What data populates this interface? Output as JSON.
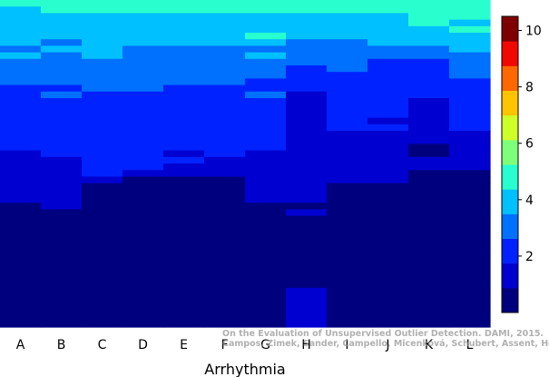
{
  "chart_data": {
    "type": "heatmap",
    "title": "",
    "xlabel": "Arrhythmia",
    "ylabel": "",
    "categories": [
      "A",
      "B",
      "C",
      "D",
      "E",
      "F",
      "G",
      "H",
      "I",
      "J",
      "K",
      "L"
    ],
    "num_rows": 50,
    "colorbar": {
      "min": 0,
      "max": 10.5,
      "ticks": [
        2,
        4,
        6,
        8,
        10
      ],
      "colors": [
        "#00007f",
        "#0000d0",
        "#0022ff",
        "#0070ff",
        "#00c0ff",
        "#29ffce",
        "#7dff7a",
        "#ceff29",
        "#ffc400",
        "#ff6800",
        "#f10800",
        "#7f0000"
      ]
    },
    "columns": [
      {
        "name": "A",
        "top": [
          4.6,
          4.2,
          4.1,
          4.0,
          3.9,
          3.7,
          3.6,
          3.3,
          3.5,
          3.0,
          3.1,
          3.0,
          2.8,
          2.6,
          2.5,
          2.3,
          2.3,
          2.2,
          2.2,
          2.0,
          2.1,
          2.0,
          1.8,
          1.6,
          1.5,
          1.5,
          1.4,
          1.3,
          1.2,
          1.1,
          1.0
        ],
        "bottom": 0.5
      },
      {
        "name": "B",
        "top": [
          4.7,
          4.6,
          4.3,
          4.2,
          4.0,
          3.9,
          3.3,
          3.8,
          3.4,
          3.2,
          2.9,
          3.0,
          2.7,
          2.6,
          2.8,
          2.6,
          2.2,
          2.4,
          2.3,
          2.2,
          2.1,
          2.0,
          2.2,
          2.0,
          1.6,
          1.6,
          1.4,
          1.4,
          1.3,
          1.2,
          1.3,
          1.1
        ],
        "bottom": 0.5
      },
      {
        "name": "C",
        "top": [
          4.7,
          4.5,
          4.3,
          4.2,
          4.0,
          3.9,
          3.6,
          3.9,
          3.7,
          3.2,
          3.0,
          2.9,
          2.8,
          2.8,
          2.6,
          2.5,
          2.4,
          2.3,
          2.3,
          2.2,
          2.1,
          2.1,
          2.0,
          2.0,
          2.0,
          1.9,
          1.8,
          1.7
        ],
        "bottom": 0.5
      },
      {
        "name": "D",
        "top": [
          4.6,
          4.4,
          4.3,
          4.2,
          4.0,
          3.9,
          3.6,
          3.3,
          3.2,
          3.1,
          3.0,
          2.9,
          2.8,
          2.7,
          2.6,
          2.5,
          2.4,
          2.3,
          2.3,
          2.2,
          2.1,
          2.0,
          1.9,
          1.8,
          1.8,
          1.8,
          1.7
        ],
        "bottom": 0.5
      },
      {
        "name": "E",
        "top": [
          4.6,
          4.4,
          4.3,
          4.2,
          4.0,
          3.9,
          3.5,
          3.3,
          3.0,
          3.1,
          2.9,
          2.8,
          2.7,
          2.6,
          2.5,
          2.4,
          2.3,
          2.3,
          2.2,
          2.2,
          2.1,
          2.0,
          1.9,
          1.7,
          1.8,
          1.6,
          1.6
        ],
        "bottom": 0.5
      },
      {
        "name": "F",
        "top": [
          4.6,
          4.4,
          4.3,
          4.2,
          4.0,
          3.9,
          3.5,
          3.1,
          3.0,
          2.9,
          2.9,
          2.8,
          2.7,
          2.6,
          2.5,
          2.4,
          2.3,
          2.3,
          2.2,
          2.2,
          2.1,
          2.0,
          1.8,
          1.9,
          1.7,
          1.6,
          1.6
        ],
        "bottom": 0.5
      },
      {
        "name": "G",
        "top": [
          4.8,
          4.6,
          4.3,
          4.2,
          4.0,
          4.7,
          4.3,
          3.3,
          3.5,
          3.2,
          2.8,
          3.0,
          2.6,
          2.4,
          2.8,
          2.6,
          2.3,
          2.4,
          2.2,
          2.1,
          2.0,
          2.1,
          1.8,
          1.6,
          1.5,
          1.5,
          1.4,
          1.3,
          1.2,
          1.1,
          1.0
        ],
        "bottom": 0.5
      },
      {
        "name": "H",
        "top": [
          4.8,
          4.5,
          4.3,
          4.2,
          3.8,
          3.6,
          3.4,
          3.0,
          2.8,
          2.9,
          2.6,
          2.5,
          2.3,
          2.4,
          1.3,
          1.5,
          1.1,
          1.4,
          1.3,
          1.2,
          1.0,
          1.3,
          1.2,
          0.9,
          1.1,
          0.9,
          1.0,
          1.2,
          1.0,
          0.9,
          0.9,
          0.8,
          0.9,
          0.8,
          0.8,
          0.8,
          0.7,
          0.7,
          0.8,
          0.7,
          0.6,
          0.6,
          0.8,
          0.6,
          1.2,
          1.0,
          1.1,
          1.1,
          1.0,
          0.9
        ],
        "bottom": 0.5
      },
      {
        "name": "I",
        "top": [
          4.7,
          4.5,
          4.3,
          4.1,
          3.9,
          3.7,
          3.4,
          3.0,
          3.2,
          2.7,
          3.0,
          2.6,
          2.4,
          2.3,
          2.2,
          2.3,
          2.1,
          2.0,
          1.9,
          1.8,
          1.7,
          1.5,
          1.4,
          1.3,
          1.2,
          1.1,
          1.0,
          0.9,
          0.8,
          0.7,
          0.7,
          0.8,
          0.7,
          0.6
        ],
        "bottom": 0.5
      },
      {
        "name": "J",
        "top": [
          4.6,
          4.5,
          4.3,
          4.1,
          4.0,
          3.7,
          3.6,
          2.9,
          3.0,
          2.6,
          2.4,
          2.5,
          2.3,
          2.0,
          2.2,
          1.8,
          2.0,
          1.9,
          1.7,
          1.8,
          1.6,
          1.5,
          1.4,
          1.3,
          1.2,
          1.1,
          1.0,
          0.9,
          0.8,
          0.7,
          0.6,
          0.6,
          0.5,
          0.5,
          0.5
        ],
        "bottom": 0.5
      },
      {
        "name": "K",
        "top": [
          4.5,
          4.8,
          4.4,
          4.7,
          3.9,
          3.7,
          3.5,
          3.0,
          2.8,
          2.6,
          2.5,
          2.4,
          2.2,
          2.0,
          1.9,
          1.7,
          1.5,
          1.3,
          1.2,
          1.1,
          1.0,
          0.9,
          0.8,
          0.7,
          1.0,
          0.9,
          0.8,
          0.7,
          0.6,
          0.6,
          0.6,
          0.6,
          0.6,
          0.6,
          0.5,
          0.5,
          0.5,
          0.5,
          0.5,
          0.5,
          0.5,
          0.5,
          0.5,
          0.5,
          0.5,
          0.5,
          0.5,
          0.5,
          0.5
        ],
        "bottom": 0.5
      },
      {
        "name": "L",
        "top": [
          4.9,
          4.7,
          4.4,
          4.2,
          4.6,
          4.1,
          3.8,
          3.5,
          3.3,
          3.1,
          3.0,
          2.8,
          2.6,
          2.5,
          2.4,
          2.3,
          2.2,
          2.1,
          2.0,
          1.9,
          1.4,
          1.2,
          1.0,
          1.1,
          1.0,
          0.9,
          0.8,
          0.8,
          0.7
        ],
        "bottom": 0.5
      }
    ]
  },
  "axes": {
    "xlabel": "Arrhythmia"
  },
  "watermark": {
    "line1": "On the Evaluation of Unsupervised Outlier Detection. DAMI, 2015.",
    "line2": "Campos, Zimek, Sander, Campello, Micenková, Schubert, Assent, Houle"
  }
}
